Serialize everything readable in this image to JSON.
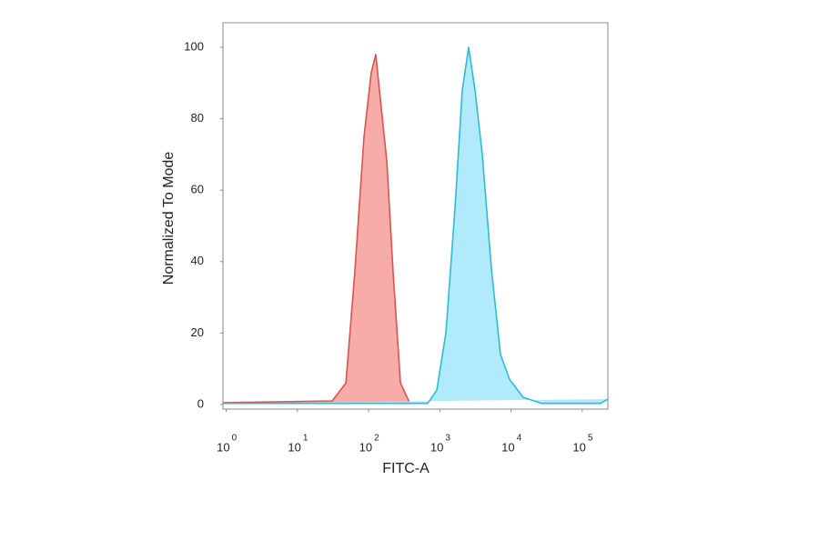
{
  "chart_data": {
    "type": "area",
    "xlabel": "FITC-A",
    "ylabel": "Normalized To Mode",
    "xscale": "log",
    "xlim": [
      0.9,
      229000
    ],
    "ylim": [
      -1.3,
      106.9
    ],
    "xticks": [
      {
        "value": 1,
        "label": "10",
        "sup": "0"
      },
      {
        "value": 10,
        "label": "10",
        "sup": "1"
      },
      {
        "value": 100,
        "label": "10",
        "sup": "2"
      },
      {
        "value": 1000,
        "label": "10",
        "sup": "3"
      },
      {
        "value": 10000,
        "label": "10",
        "sup": "4"
      },
      {
        "value": 100000,
        "label": "10",
        "sup": "5"
      }
    ],
    "yticks": [
      0,
      20,
      40,
      60,
      80,
      100
    ],
    "series": [
      {
        "color": "#d9534f",
        "fill": "#f6a3a0",
        "x": [
          0.9,
          30.8,
          48,
          64,
          86,
          109,
          126,
          147,
          180,
          221,
          280,
          376
        ],
        "values": [
          0.5,
          1,
          6,
          37,
          75,
          93,
          98,
          85,
          68,
          37,
          6,
          0.5
        ]
      },
      {
        "color": "#2bbbd8",
        "fill": "#a9e8f9",
        "x": [
          0.9,
          676,
          907,
          1217,
          1633,
          2066,
          2540,
          3120,
          3945,
          5300,
          7110,
          9550,
          14800,
          26700,
          182000,
          229000
        ],
        "values": [
          0.3,
          0.3,
          4,
          20,
          55,
          88,
          100,
          88,
          70,
          38,
          14,
          7,
          2,
          0.3,
          0.3,
          1.5
        ]
      }
    ]
  }
}
